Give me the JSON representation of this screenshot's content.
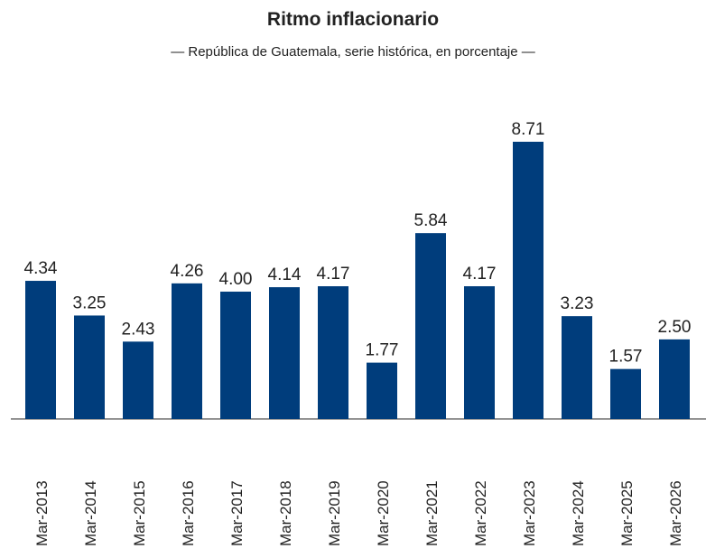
{
  "chart_data": {
    "type": "bar",
    "title": "Ritmo inflacionario",
    "subtitle": "— República de Guatemala, serie histórica, en porcentaje —",
    "categories": [
      "Mar-2013",
      "Mar-2014",
      "Mar-2015",
      "Mar-2016",
      "Mar-2017",
      "Mar-2018",
      "Mar-2019",
      "Mar-2020",
      "Mar-2021",
      "Mar-2022",
      "Mar-2023",
      "Mar-2024",
      "Mar-2025",
      "Mar-2026"
    ],
    "values": [
      4.34,
      3.25,
      2.43,
      4.26,
      4.0,
      4.14,
      4.17,
      1.77,
      5.84,
      4.17,
      8.71,
      3.23,
      1.57,
      2.5
    ],
    "value_labels": [
      "4.34",
      "3.25",
      "2.43",
      "4.26",
      "4.00",
      "4.14",
      "4.17",
      "1.77",
      "5.84",
      "4.17",
      "8.71",
      "3.23",
      "1.57",
      "2.50"
    ],
    "color": "#003d7c"
  }
}
